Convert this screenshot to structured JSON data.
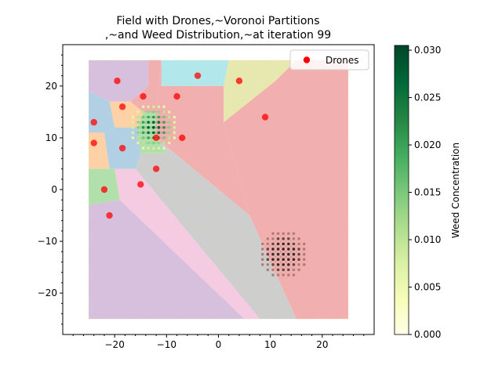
{
  "chart_data": {
    "type": "scatter",
    "title_lines": [
      "Field with Drones,~Voronoi Partitions",
      ",~and Weed Distribution,~at iteration 99"
    ],
    "xlabel": "",
    "ylabel": "",
    "xlim": [
      -30,
      30
    ],
    "ylim": [
      -28,
      28
    ],
    "xticks": [
      -20,
      -10,
      0,
      10,
      20
    ],
    "yticks": [
      -20,
      -10,
      0,
      10,
      20
    ],
    "x_tick_labels": [
      "−20",
      "−10",
      "0",
      "10",
      "20"
    ],
    "y_tick_labels": [
      "−20",
      "−10",
      "0",
      "10",
      "20"
    ],
    "grid": false,
    "field_bounds": {
      "x": [
        -25,
        25
      ],
      "y": [
        -25,
        25
      ]
    },
    "legend": {
      "position": "top-right",
      "entries": [
        {
          "label": "Drones",
          "color": "#ff0000"
        }
      ]
    },
    "series": [
      {
        "name": "Drones",
        "color": "#ff0000",
        "points": [
          [
            -19.5,
            21
          ],
          [
            -14.5,
            18
          ],
          [
            -8,
            18
          ],
          [
            -4,
            22
          ],
          [
            4,
            21
          ],
          [
            -18.5,
            16
          ],
          [
            -24,
            13
          ],
          [
            9,
            14
          ],
          [
            -12,
            10
          ],
          [
            -7,
            10
          ],
          [
            -24,
            9
          ],
          [
            -18.5,
            8
          ],
          [
            -12,
            4
          ],
          [
            -15,
            1
          ],
          [
            -22,
            0
          ],
          [
            -21,
            -5
          ]
        ]
      }
    ],
    "voronoi_regions": [
      {
        "color": "#d1b7d8",
        "polygon": [
          [
            -25,
            25
          ],
          [
            -13.5,
            25
          ],
          [
            -13.5,
            20
          ],
          [
            -17,
            17
          ],
          [
            -21,
            17
          ],
          [
            -25,
            19
          ]
        ]
      },
      {
        "color": "#f0a4a4",
        "polygon": [
          [
            -13.5,
            25
          ],
          [
            -11,
            25
          ],
          [
            -12,
            15
          ],
          [
            -14.5,
            15
          ],
          [
            -17,
            17
          ],
          [
            -13.5,
            20
          ]
        ]
      },
      {
        "color": "#a7e4e8",
        "polygon": [
          [
            -11,
            25
          ],
          [
            2,
            25
          ],
          [
            1,
            20
          ],
          [
            -11,
            20
          ]
        ]
      },
      {
        "color": "#e2e5a5",
        "polygon": [
          [
            2,
            25
          ],
          [
            15,
            25
          ],
          [
            11,
            21
          ],
          [
            1,
            13
          ],
          [
            1,
            20
          ]
        ]
      },
      {
        "color": "#f0a4a4",
        "polygon": [
          [
            15,
            25
          ],
          [
            25,
            25
          ],
          [
            25,
            -25
          ],
          [
            15,
            -25
          ],
          [
            6,
            -5
          ],
          [
            1,
            13
          ],
          [
            11,
            21
          ]
        ]
      },
      {
        "color": "#f0a4a4",
        "polygon": [
          [
            -11,
            25
          ],
          [
            -11,
            20
          ],
          [
            1,
            20
          ],
          [
            1,
            13
          ],
          [
            6,
            -5
          ],
          [
            -12,
            10
          ],
          [
            -12,
            15
          ]
        ]
      },
      {
        "color": "#ffcb9a",
        "polygon": [
          [
            -21,
            17
          ],
          [
            -17,
            17
          ],
          [
            -14.5,
            15
          ],
          [
            -15.5,
            12
          ],
          [
            -20,
            12
          ]
        ]
      },
      {
        "color": "#a7c9e0",
        "polygon": [
          [
            -25,
            19
          ],
          [
            -21,
            17
          ],
          [
            -20,
            12
          ],
          [
            -22,
            11
          ],
          [
            -25,
            11
          ]
        ]
      },
      {
        "color": "#a7dca0",
        "polygon": [
          [
            -15.5,
            12
          ],
          [
            -14.5,
            15
          ],
          [
            -12,
            15
          ],
          [
            -12,
            10
          ],
          [
            -10,
            7
          ],
          [
            -15,
            7
          ]
        ]
      },
      {
        "color": "#ffcb9a",
        "polygon": [
          [
            -25,
            11
          ],
          [
            -22,
            11
          ],
          [
            -21,
            4
          ],
          [
            -25,
            4
          ]
        ]
      },
      {
        "color": "#a7c9e0",
        "polygon": [
          [
            -20,
            12
          ],
          [
            -15.5,
            12
          ],
          [
            -15,
            7
          ],
          [
            -16,
            4
          ],
          [
            -20,
            4
          ],
          [
            -21,
            4
          ],
          [
            -22,
            11
          ]
        ]
      },
      {
        "color": "#c7c7c7",
        "polygon": [
          [
            -15,
            7
          ],
          [
            -10,
            7
          ],
          [
            -12,
            10
          ],
          [
            6,
            -5
          ],
          [
            15,
            -25
          ],
          [
            8,
            -25
          ],
          [
            -16,
            4
          ]
        ]
      },
      {
        "color": "#a7dca0",
        "polygon": [
          [
            -25,
            4
          ],
          [
            -20,
            4
          ],
          [
            -19,
            -2
          ],
          [
            -25,
            -3
          ]
        ]
      },
      {
        "color": "#f4c4df",
        "polygon": [
          [
            -16,
            4
          ],
          [
            8,
            -25
          ],
          [
            5,
            -25
          ],
          [
            -19,
            -2
          ],
          [
            -20,
            4
          ]
        ]
      },
      {
        "color": "#d1b7d8",
        "polygon": [
          [
            -25,
            -3
          ],
          [
            -19,
            -2
          ],
          [
            5,
            -25
          ],
          [
            -25,
            -25
          ]
        ]
      }
    ],
    "weed_hotspots": [
      {
        "x": -12.5,
        "y": 12,
        "peak": 0.03
      },
      {
        "x": 12.5,
        "y": -12.5,
        "peak": 0.03
      }
    ],
    "colorbar": {
      "label": "Weed Concentration",
      "min": 0.0,
      "max": 0.0305,
      "ticks": [
        0.0,
        0.005,
        0.01,
        0.015,
        0.02,
        0.025,
        0.03
      ],
      "tick_labels": [
        "0.000",
        "0.005",
        "0.010",
        "0.015",
        "0.020",
        "0.025",
        "0.030"
      ],
      "colormap": "Greens"
    }
  }
}
